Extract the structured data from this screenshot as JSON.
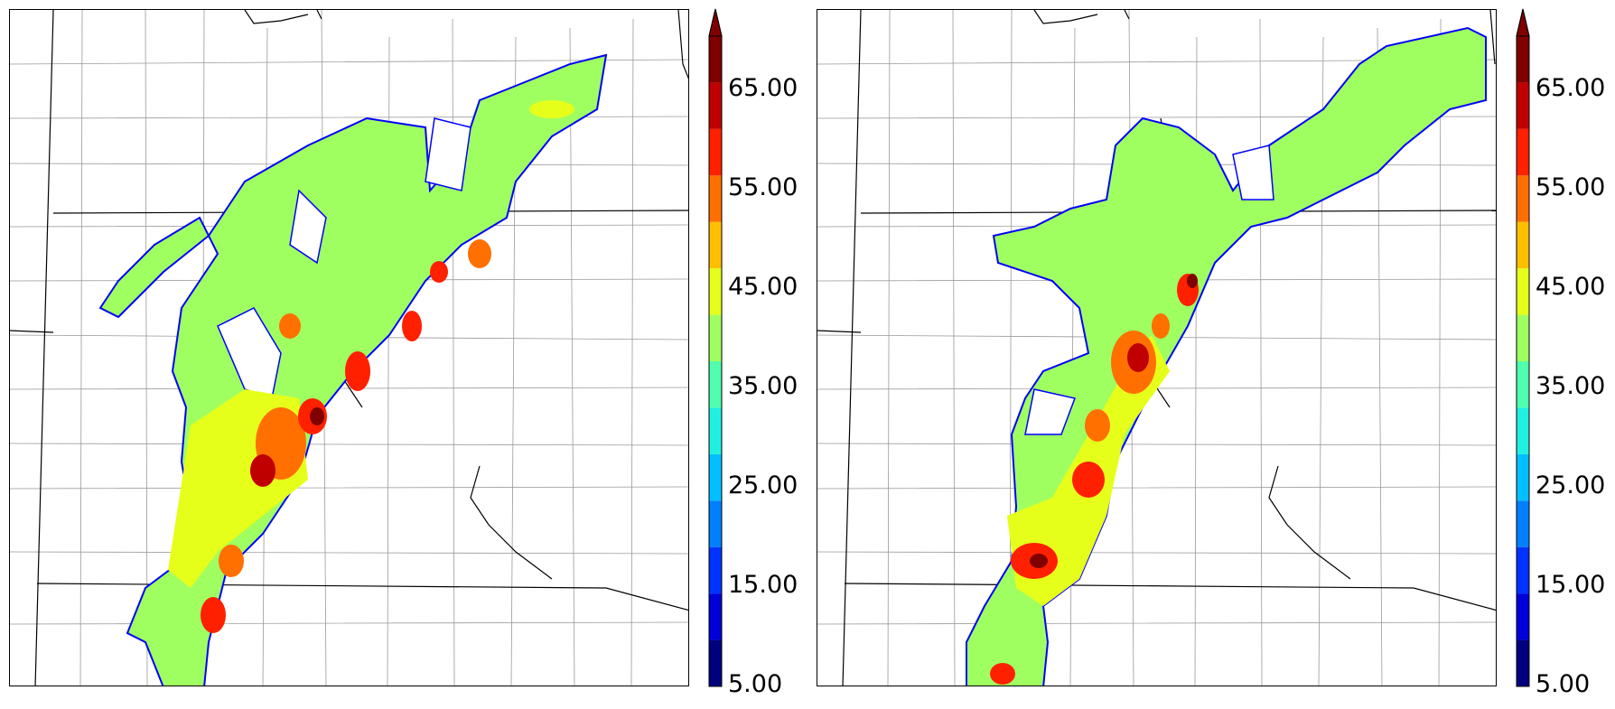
{
  "colorbar": {
    "ticks": [
      "5.00",
      "15.00",
      "25.00",
      "35.00",
      "45.00",
      "55.00",
      "65.00"
    ],
    "levels": [
      5,
      10,
      15,
      20,
      25,
      30,
      35,
      40,
      45,
      50,
      55,
      60,
      65,
      70
    ],
    "colors": [
      "#00007f",
      "#0000d9",
      "#0033ff",
      "#0080ff",
      "#00c0ff",
      "#1ff0e0",
      "#4fffad",
      "#a0ff60",
      "#e6ff1a",
      "#ffc000",
      "#ff7000",
      "#ff2000",
      "#c00000",
      "#800000"
    ],
    "extend": "max"
  },
  "panels": [
    {
      "name": "left",
      "fill_outline_color": "#0000ff"
    },
    {
      "name": "right",
      "fill_outline_color": "#0000ff"
    }
  ]
}
